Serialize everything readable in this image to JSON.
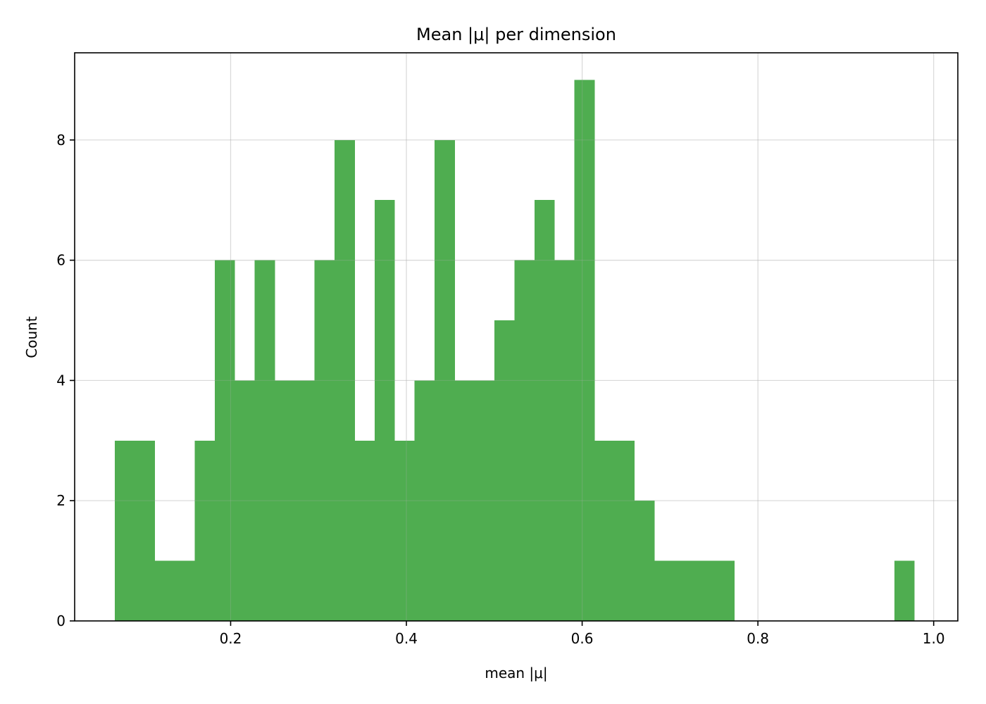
{
  "chart_data": {
    "type": "bar",
    "title": "Mean |μ| per dimension",
    "xlabel": "mean |μ|",
    "ylabel": "Count",
    "xlim": [
      0.0225,
      1.0275
    ],
    "ylim": [
      0,
      9.45
    ],
    "xticks": [
      0.2,
      0.4,
      0.6,
      0.8,
      1.0
    ],
    "xtick_labels": [
      "0.2",
      "0.4",
      "0.6",
      "0.8",
      "1.0"
    ],
    "yticks": [
      0,
      2,
      4,
      6,
      8
    ],
    "ytick_labels": [
      "0",
      "2",
      "4",
      "6",
      "8"
    ],
    "grid": true,
    "bar_color": "#4fad50",
    "bins": [
      {
        "x0": 0.068,
        "x1": 0.0908,
        "count": 3
      },
      {
        "x0": 0.0908,
        "x1": 0.1135,
        "count": 3
      },
      {
        "x0": 0.1135,
        "x1": 0.1363,
        "count": 1
      },
      {
        "x0": 0.1363,
        "x1": 0.159,
        "count": 1
      },
      {
        "x0": 0.159,
        "x1": 0.1818,
        "count": 3
      },
      {
        "x0": 0.1818,
        "x1": 0.2045,
        "count": 6
      },
      {
        "x0": 0.2045,
        "x1": 0.2273,
        "count": 4
      },
      {
        "x0": 0.2273,
        "x1": 0.25,
        "count": 6
      },
      {
        "x0": 0.25,
        "x1": 0.2728,
        "count": 4
      },
      {
        "x0": 0.2728,
        "x1": 0.2955,
        "count": 4
      },
      {
        "x0": 0.2955,
        "x1": 0.3183,
        "count": 6
      },
      {
        "x0": 0.3183,
        "x1": 0.341,
        "count": 8
      },
      {
        "x0": 0.341,
        "x1": 0.3638,
        "count": 3
      },
      {
        "x0": 0.3638,
        "x1": 0.3865,
        "count": 7
      },
      {
        "x0": 0.3865,
        "x1": 0.4093,
        "count": 3
      },
      {
        "x0": 0.4093,
        "x1": 0.432,
        "count": 4
      },
      {
        "x0": 0.432,
        "x1": 0.4548,
        "count": 8
      },
      {
        "x0": 0.4548,
        "x1": 0.4775,
        "count": 4
      },
      {
        "x0": 0.4775,
        "x1": 0.5003,
        "count": 4
      },
      {
        "x0": 0.5003,
        "x1": 0.523,
        "count": 5
      },
      {
        "x0": 0.523,
        "x1": 0.5458,
        "count": 6
      },
      {
        "x0": 0.5458,
        "x1": 0.5685,
        "count": 7
      },
      {
        "x0": 0.5685,
        "x1": 0.5913,
        "count": 6
      },
      {
        "x0": 0.5913,
        "x1": 0.614,
        "count": 9
      },
      {
        "x0": 0.614,
        "x1": 0.6368,
        "count": 3
      },
      {
        "x0": 0.6368,
        "x1": 0.6595,
        "count": 3
      },
      {
        "x0": 0.6595,
        "x1": 0.6823,
        "count": 2
      },
      {
        "x0": 0.6823,
        "x1": 0.705,
        "count": 1
      },
      {
        "x0": 0.705,
        "x1": 0.7278,
        "count": 1
      },
      {
        "x0": 0.7278,
        "x1": 0.7505,
        "count": 1
      },
      {
        "x0": 0.7505,
        "x1": 0.7733,
        "count": 1
      },
      {
        "x0": 0.7733,
        "x1": 0.796,
        "count": 0
      },
      {
        "x0": 0.796,
        "x1": 0.8188,
        "count": 0
      },
      {
        "x0": 0.8188,
        "x1": 0.8415,
        "count": 0
      },
      {
        "x0": 0.8415,
        "x1": 0.8643,
        "count": 0
      },
      {
        "x0": 0.8643,
        "x1": 0.887,
        "count": 0
      },
      {
        "x0": 0.887,
        "x1": 0.9098,
        "count": 0
      },
      {
        "x0": 0.9098,
        "x1": 0.9325,
        "count": 0
      },
      {
        "x0": 0.9325,
        "x1": 0.9553,
        "count": 0
      },
      {
        "x0": 0.9553,
        "x1": 0.978,
        "count": 1
      }
    ]
  }
}
